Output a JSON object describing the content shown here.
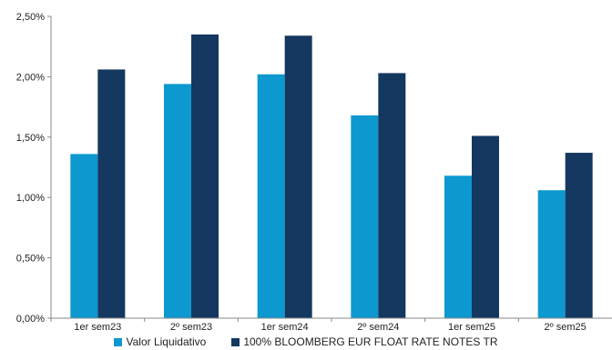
{
  "chart_data": {
    "type": "bar",
    "title": "",
    "xlabel": "",
    "ylabel": "",
    "categories": [
      "1er sem23",
      "2º sem23",
      "1er sem24",
      "2º sem24",
      "1er sem25",
      "2º sem25"
    ],
    "series": [
      {
        "name": "Valor Liquidativo",
        "color": "#0d98cf",
        "values": [
          1.36,
          1.94,
          2.02,
          1.68,
          1.18,
          1.06
        ]
      },
      {
        "name": "100% BLOOMBERG EUR FLOAT RATE NOTES TR",
        "color": "#14385f",
        "values": [
          2.06,
          2.35,
          2.34,
          2.03,
          1.51,
          1.37
        ]
      }
    ],
    "ylim": [
      0,
      2.5
    ],
    "yticks": [
      "0,00%",
      "0,50%",
      "1,00%",
      "1,50%",
      "2,00%",
      "2,50%"
    ],
    "grid": false,
    "legend_position": "bottom"
  }
}
